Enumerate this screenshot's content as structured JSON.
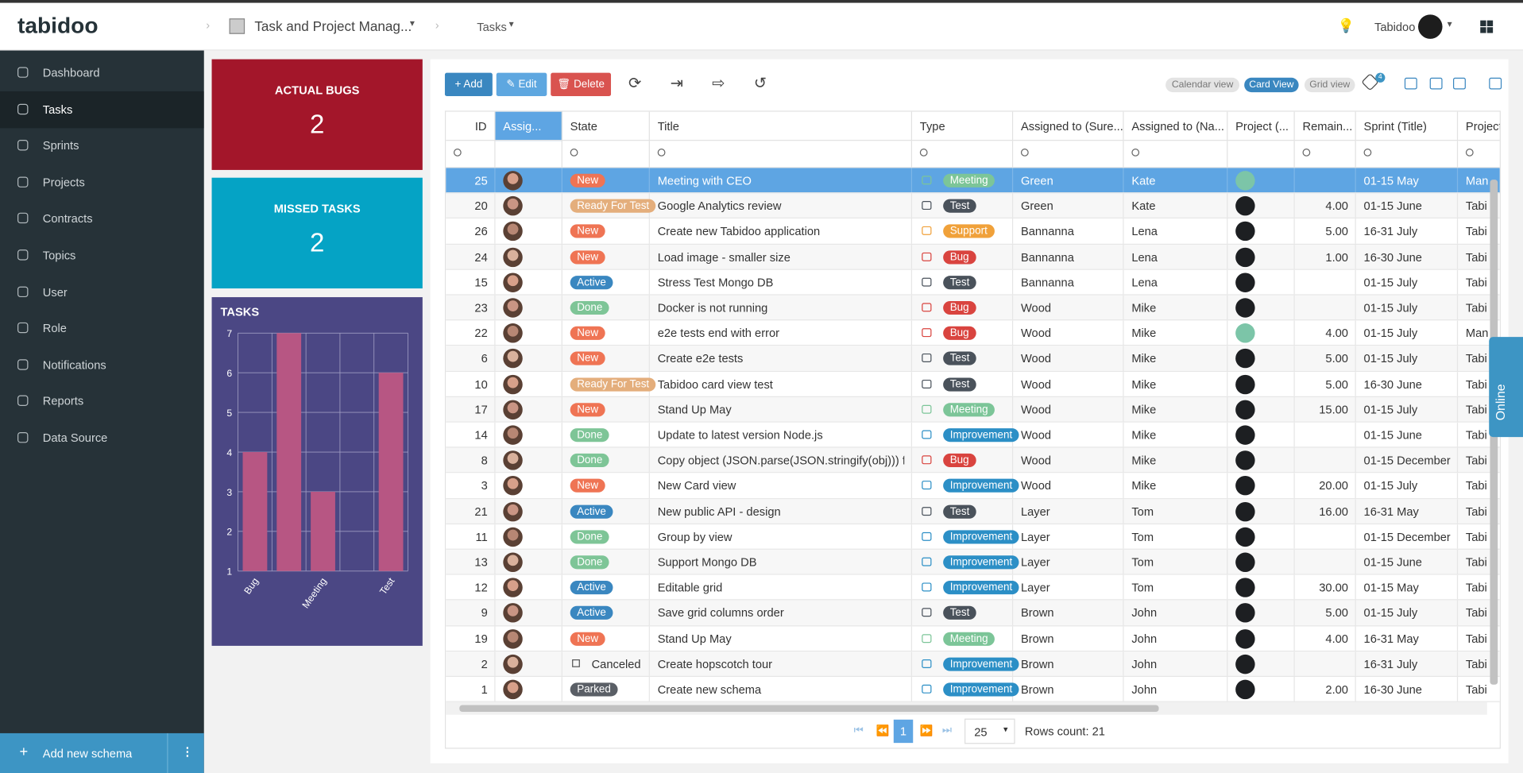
{
  "header": {
    "logo": "tabidoo",
    "app": "Task and Project Manag...",
    "page": "Tasks",
    "user": "Tabidoo"
  },
  "sidebar": {
    "items": [
      "Dashboard",
      "Tasks",
      "Sprints",
      "Projects",
      "Contracts",
      "Topics",
      "User",
      "Role",
      "Notifications",
      "Reports",
      "Data Source"
    ],
    "add": "Add new schema"
  },
  "cards": [
    {
      "title": "ACTUAL BUGS",
      "value": 2
    },
    {
      "title": "MISSED TASKS",
      "value": 2
    }
  ],
  "chart_data": {
    "type": "bar",
    "title": "TASKS",
    "categories": [
      "Bug",
      null,
      "Meeting",
      null,
      "Test"
    ],
    "values": [
      4,
      7,
      3,
      1,
      6
    ],
    "color": "#b75683",
    "ylim": [
      1,
      7
    ],
    "yticks": [
      1,
      2,
      3,
      4,
      5,
      6,
      7
    ],
    "grid": true
  },
  "toolbar": {
    "add": "Add",
    "edit": "Edit",
    "delete": "Delete",
    "views": [
      "Calendar view",
      "Card View",
      "Grid view"
    ],
    "badge": 4
  },
  "table": {
    "columns": [
      "ID",
      "Assig...",
      "State",
      "Title",
      "Type",
      "Assigned to (Sure...",
      "Assigned to (Na...",
      "Project (...",
      "Remain...",
      "Sprint (Title)",
      "Project"
    ],
    "rows": [
      [
        25,
        "New",
        "Meeting with CEO",
        "Meeting",
        "Green",
        "Kate",
        null,
        "01-15 May",
        "Man"
      ],
      [
        20,
        "Ready For Test",
        "Google Analytics review",
        "Test",
        "Green",
        "Kate",
        "4.00",
        "01-15 June",
        "Tabi"
      ],
      [
        26,
        "New",
        "Create new Tabidoo application",
        "Support",
        "Bannanna",
        "Lena",
        "5.00",
        "16-31 July",
        "Tabi"
      ],
      [
        24,
        "New",
        "Load image - smaller size",
        "Bug",
        "Bannanna",
        "Lena",
        "1.00",
        "16-30 June",
        "Tabi"
      ],
      [
        15,
        "Active",
        "Stress Test Mongo DB",
        "Test",
        "Bannanna",
        "Lena",
        null,
        "01-15 July",
        "Tabi"
      ],
      [
        23,
        "Done",
        "Docker is not running",
        "Bug",
        "Wood",
        "Mike",
        null,
        "01-15 July",
        "Tabi"
      ],
      [
        22,
        "New",
        "e2e tests end with error",
        "Bug",
        "Wood",
        "Mike",
        "4.00",
        "01-15 July",
        "Man"
      ],
      [
        6,
        "New",
        "Create e2e tests",
        "Test",
        "Wood",
        "Mike",
        "5.00",
        "01-15 July",
        "Tabi"
      ],
      [
        10,
        "Ready For Test",
        "Tabidoo card view test",
        "Test",
        "Wood",
        "Mike",
        "5.00",
        "16-30 June",
        "Tabi"
      ],
      [
        17,
        "New",
        "Stand Up May",
        "Meeting",
        "Wood",
        "Mike",
        "15.00",
        "01-15 July",
        "Tabi"
      ],
      [
        14,
        "Done",
        "Update to latest version Node.js",
        "Improvement",
        "Wood",
        "Mike",
        null,
        "01-15 June",
        "Tabi"
      ],
      [
        8,
        "Done",
        "Copy object (JSON.parse(JSON.stringify(obj))) fails",
        "Bug",
        "Wood",
        "Mike",
        null,
        "01-15 December",
        "Tabi"
      ],
      [
        3,
        "New",
        "New Card view",
        "Improvement",
        "Wood",
        "Mike",
        "20.00",
        "01-15 July",
        "Tabi"
      ],
      [
        21,
        "Active",
        "New public API - design",
        "Test",
        "Layer",
        "Tom",
        "16.00",
        "16-31 May",
        "Tabi"
      ],
      [
        11,
        "Done",
        "Group by view",
        "Improvement",
        "Layer",
        "Tom",
        null,
        "01-15 December",
        "Tabi"
      ],
      [
        13,
        "Done",
        "Support Mongo DB",
        "Improvement",
        "Layer",
        "Tom",
        null,
        "01-15 June",
        "Tabi"
      ],
      [
        12,
        "Active",
        "Editable grid",
        "Improvement",
        "Layer",
        "Tom",
        "30.00",
        "01-15 May",
        "Tabi"
      ],
      [
        9,
        "Active",
        "Save grid columns order",
        "Test",
        "Brown",
        "John",
        "5.00",
        "01-15 July",
        "Tabi"
      ],
      [
        19,
        "New",
        "Stand Up May",
        "Meeting",
        "Brown",
        "John",
        "4.00",
        "16-31 May",
        "Tabi"
      ],
      [
        2,
        "Canceled",
        "Create hopscotch tour",
        "Improvement",
        "Brown",
        "John",
        null,
        "16-31 July",
        "Tabi"
      ],
      [
        1,
        "Parked",
        "Create new schema",
        "Improvement",
        "Brown",
        "John",
        "2.00",
        "16-30 June",
        "Tabi"
      ]
    ]
  },
  "pager": {
    "page": 1,
    "size": 25,
    "rows_count": "Rows count: 21"
  },
  "online": "Online"
}
